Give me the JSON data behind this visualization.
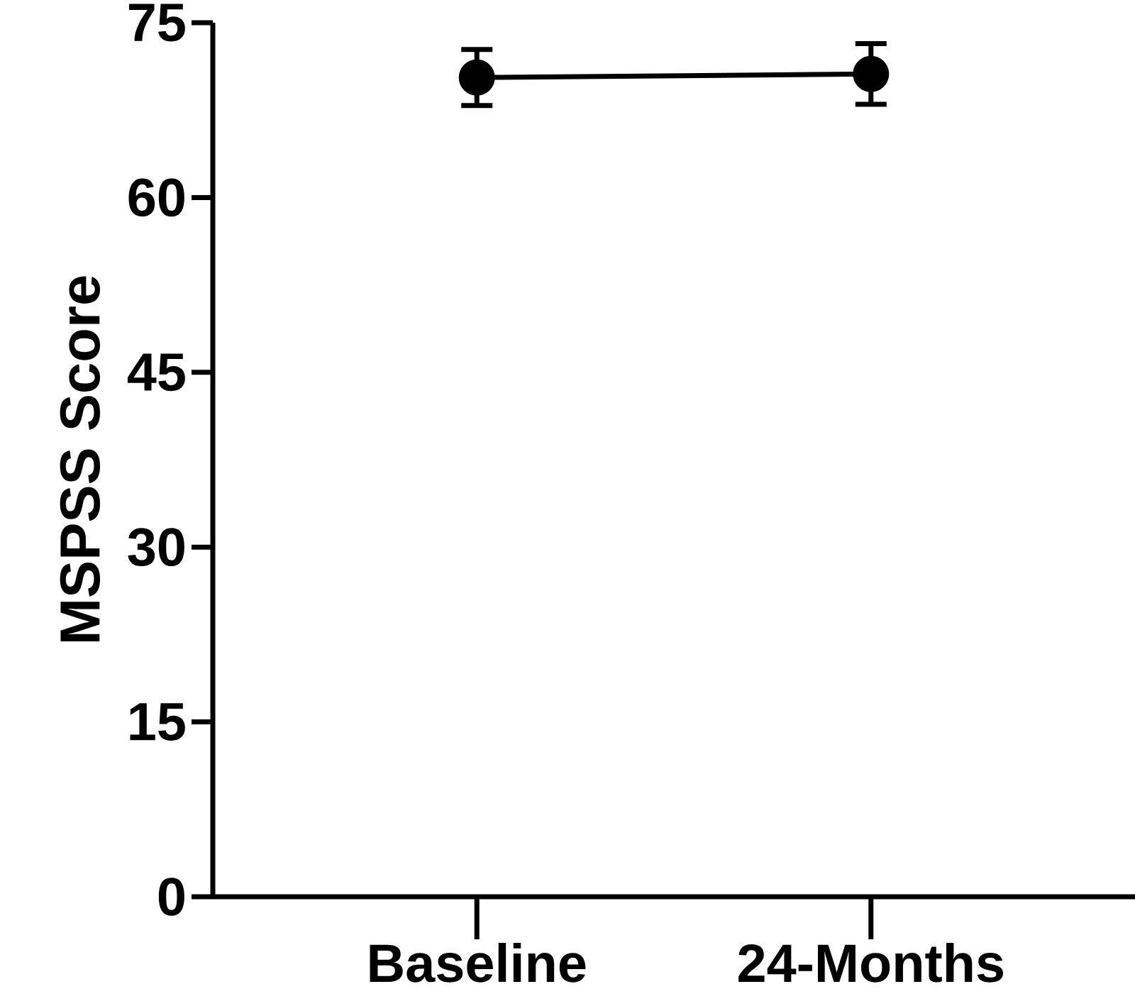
{
  "chart_data": {
    "type": "line",
    "ylabel": "MSPSS Score",
    "categories": [
      "Baseline",
      "24-Months"
    ],
    "values": [
      70.3,
      70.6
    ],
    "errors": [
      2.4,
      2.6
    ],
    "color": "#000000",
    "ylim": [
      0,
      75
    ],
    "yticks": [
      0,
      15,
      30,
      45,
      60,
      75
    ],
    "grid": false,
    "marker": "circle",
    "line_style": "solid"
  }
}
